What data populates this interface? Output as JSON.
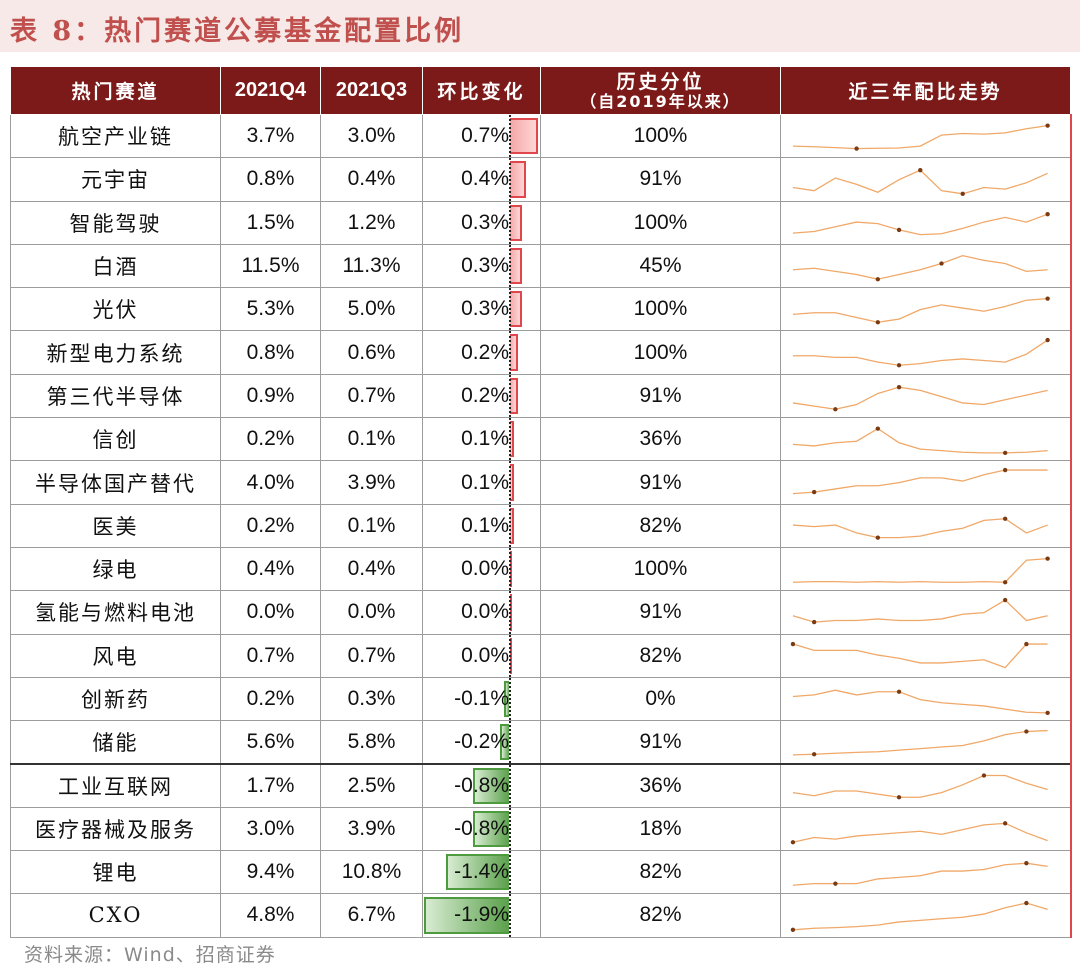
{
  "title": "表 8：热门赛道公募基金配置比例",
  "headers": {
    "sector": "热门赛道",
    "q4": "2021Q4",
    "q3": "2021Q3",
    "change": "环比变化",
    "percentile_line1": "历史分位",
    "percentile_line2": "（自2019年以来）",
    "trend": "近三年配比走势"
  },
  "colors": {
    "header_bg": "#7b1a18",
    "title": "#c0504d",
    "pos_bar": "#e0474c",
    "neg_bar": "#4e9a3e",
    "sparkline": "#f0a868",
    "marker": "#7a3b12"
  },
  "rows": [
    {
      "name": "航空产业链",
      "q4": "3.7%",
      "q3": "3.0%",
      "change": "0.7%",
      "change_value": 0.7,
      "percentile": "100%",
      "trend": [
        0.2,
        0.18,
        0.15,
        0.12,
        0.13,
        0.14,
        0.2,
        0.55,
        0.6,
        0.58,
        0.62,
        0.75,
        0.85
      ],
      "markers": [
        3,
        12
      ]
    },
    {
      "name": "元宇宙",
      "q4": "0.8%",
      "q3": "0.4%",
      "change": "0.4%",
      "change_value": 0.4,
      "percentile": "91%",
      "trend": [
        0.25,
        0.15,
        0.55,
        0.35,
        0.1,
        0.5,
        0.8,
        0.15,
        0.05,
        0.25,
        0.2,
        0.4,
        0.7
      ],
      "markers": [
        6,
        8
      ]
    },
    {
      "name": "智能驾驶",
      "q4": "1.5%",
      "q3": "1.2%",
      "change": "0.3%",
      "change_value": 0.3,
      "percentile": "100%",
      "trend": [
        0.2,
        0.25,
        0.4,
        0.55,
        0.5,
        0.3,
        0.15,
        0.18,
        0.35,
        0.55,
        0.7,
        0.55,
        0.8
      ],
      "markers": [
        5,
        12
      ]
    },
    {
      "name": "白酒",
      "q4": "11.5%",
      "q3": "11.3%",
      "change": "0.3%",
      "change_value": 0.3,
      "percentile": "45%",
      "trend": [
        0.4,
        0.45,
        0.35,
        0.25,
        0.1,
        0.25,
        0.4,
        0.6,
        0.85,
        0.7,
        0.6,
        0.35,
        0.4
      ],
      "markers": [
        4,
        7
      ]
    },
    {
      "name": "光伏",
      "q4": "5.3%",
      "q3": "5.0%",
      "change": "0.3%",
      "change_value": 0.3,
      "percentile": "100%",
      "trend": [
        0.35,
        0.4,
        0.4,
        0.25,
        0.1,
        0.2,
        0.5,
        0.65,
        0.55,
        0.45,
        0.6,
        0.8,
        0.85
      ],
      "markers": [
        4,
        12
      ]
    },
    {
      "name": "新型电力系统",
      "q4": "0.8%",
      "q3": "0.6%",
      "change": "0.2%",
      "change_value": 0.2,
      "percentile": "100%",
      "trend": [
        0.4,
        0.4,
        0.35,
        0.35,
        0.2,
        0.1,
        0.15,
        0.25,
        0.3,
        0.25,
        0.2,
        0.45,
        0.9
      ],
      "markers": [
        5,
        12
      ]
    },
    {
      "name": "第三代半导体",
      "q4": "0.9%",
      "q3": "0.7%",
      "change": "0.2%",
      "change_value": 0.2,
      "percentile": "91%",
      "trend": [
        0.3,
        0.2,
        0.1,
        0.25,
        0.6,
        0.8,
        0.7,
        0.5,
        0.3,
        0.25,
        0.4,
        0.55,
        0.7
      ],
      "markers": [
        2,
        5
      ]
    },
    {
      "name": "信创",
      "q4": "0.2%",
      "q3": "0.1%",
      "change": "0.1%",
      "change_value": 0.1,
      "percentile": "36%",
      "trend": [
        0.35,
        0.3,
        0.4,
        0.45,
        0.85,
        0.4,
        0.2,
        0.15,
        0.1,
        0.08,
        0.08,
        0.1,
        0.15
      ],
      "markers": [
        4,
        10
      ]
    },
    {
      "name": "半导体国产替代",
      "q4": "4.0%",
      "q3": "3.9%",
      "change": "0.1%",
      "change_value": 0.1,
      "percentile": "91%",
      "trend": [
        0.15,
        0.2,
        0.3,
        0.4,
        0.4,
        0.5,
        0.65,
        0.65,
        0.55,
        0.75,
        0.9,
        0.9,
        0.9
      ],
      "markers": [
        1,
        10
      ]
    },
    {
      "name": "医美",
      "q4": "0.2%",
      "q3": "0.1%",
      "change": "0.1%",
      "change_value": 0.1,
      "percentile": "82%",
      "trend": [
        0.55,
        0.5,
        0.55,
        0.3,
        0.15,
        0.15,
        0.2,
        0.35,
        0.45,
        0.7,
        0.75,
        0.3,
        0.55
      ],
      "markers": [
        4,
        10
      ]
    },
    {
      "name": "绿电",
      "q4": "0.4%",
      "q3": "0.4%",
      "change": "0.0%",
      "change_value": 0.0,
      "percentile": "100%",
      "trend": [
        0.1,
        0.12,
        0.12,
        0.1,
        0.12,
        0.1,
        0.12,
        0.1,
        0.1,
        0.12,
        0.1,
        0.8,
        0.85
      ],
      "markers": [
        10,
        12
      ]
    },
    {
      "name": "氢能与燃料电池",
      "q4": "0.0%",
      "q3": "0.0%",
      "change": "0.0%",
      "change_value": 0.0,
      "percentile": "91%",
      "trend": [
        0.4,
        0.2,
        0.25,
        0.25,
        0.3,
        0.25,
        0.25,
        0.3,
        0.45,
        0.5,
        0.9,
        0.25,
        0.4
      ],
      "markers": [
        1,
        10
      ]
    },
    {
      "name": "风电",
      "q4": "0.7%",
      "q3": "0.7%",
      "change": "0.0%",
      "change_value": 0.0,
      "percentile": "82%",
      "trend": [
        0.9,
        0.7,
        0.7,
        0.7,
        0.55,
        0.45,
        0.3,
        0.3,
        0.35,
        0.4,
        0.15,
        0.9,
        0.9
      ],
      "markers": [
        0,
        11
      ]
    },
    {
      "name": "创新药",
      "q4": "0.2%",
      "q3": "0.3%",
      "change": "-0.1%",
      "change_value": -0.1,
      "percentile": "0%",
      "trend": [
        0.6,
        0.65,
        0.8,
        0.65,
        0.75,
        0.75,
        0.5,
        0.4,
        0.35,
        0.3,
        0.2,
        0.1,
        0.08
      ],
      "markers": [
        5,
        12
      ]
    },
    {
      "name": "储能",
      "q4": "5.6%",
      "q3": "5.8%",
      "change": "-0.2%",
      "change_value": -0.2,
      "percentile": "91%",
      "trend": [
        0.1,
        0.12,
        0.15,
        0.18,
        0.2,
        0.25,
        0.3,
        0.35,
        0.4,
        0.55,
        0.75,
        0.85,
        0.88
      ],
      "markers": [
        1,
        11
      ]
    },
    {
      "name": "工业互联网",
      "q4": "1.7%",
      "q3": "2.5%",
      "change": "-0.8%",
      "change_value": -0.8,
      "percentile": "36%",
      "trend": [
        0.3,
        0.2,
        0.35,
        0.35,
        0.25,
        0.15,
        0.15,
        0.3,
        0.55,
        0.85,
        0.85,
        0.6,
        0.4
      ],
      "markers": [
        5,
        9
      ]
    },
    {
      "name": "医疗器械及服务",
      "q4": "3.0%",
      "q3": "3.9%",
      "change": "-0.8%",
      "change_value": -0.8,
      "percentile": "18%",
      "trend": [
        0.1,
        0.25,
        0.2,
        0.3,
        0.35,
        0.4,
        0.45,
        0.35,
        0.5,
        0.65,
        0.7,
        0.4,
        0.15
      ],
      "markers": [
        0,
        10
      ]
    },
    {
      "name": "锂电",
      "q4": "9.4%",
      "q3": "10.8%",
      "change": "-1.4%",
      "change_value": -1.4,
      "percentile": "82%",
      "trend": [
        0.1,
        0.15,
        0.15,
        0.15,
        0.3,
        0.35,
        0.4,
        0.55,
        0.55,
        0.6,
        0.75,
        0.8,
        0.7
      ],
      "markers": [
        2,
        11
      ]
    },
    {
      "name": "CXO",
      "q4": "4.8%",
      "q3": "6.7%",
      "change": "-1.9%",
      "change_value": -1.9,
      "percentile": "82%",
      "trend": [
        0.05,
        0.1,
        0.12,
        0.15,
        0.2,
        0.3,
        0.35,
        0.4,
        0.45,
        0.55,
        0.75,
        0.9,
        0.7
      ],
      "markers": [
        0,
        11
      ]
    }
  ],
  "source": "资料来源：Wind、招商证券"
}
